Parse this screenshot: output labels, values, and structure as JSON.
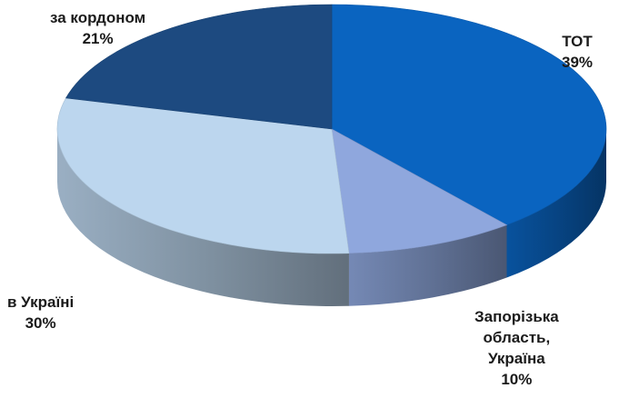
{
  "chart_data": {
    "type": "pie",
    "style": "3d",
    "slices": [
      {
        "label": "ТОТ",
        "lines": [
          "ТОТ"
        ],
        "percent_label": "39%",
        "value": 39,
        "color": "#0a64c0"
      },
      {
        "label": "Запорізька область, Україна",
        "lines": [
          "Запорізька",
          "область,",
          "Україна"
        ],
        "percent_label": "10%",
        "value": 10,
        "color": "#8fa7dd"
      },
      {
        "label": "в Україні",
        "lines": [
          "в Україні"
        ],
        "percent_label": "30%",
        "value": 30,
        "color": "#bcd6ee"
      },
      {
        "label": "за кордоном",
        "lines": [
          "за кордоном"
        ],
        "percent_label": "21%",
        "value": 21,
        "color": "#1d4a80"
      }
    ]
  }
}
